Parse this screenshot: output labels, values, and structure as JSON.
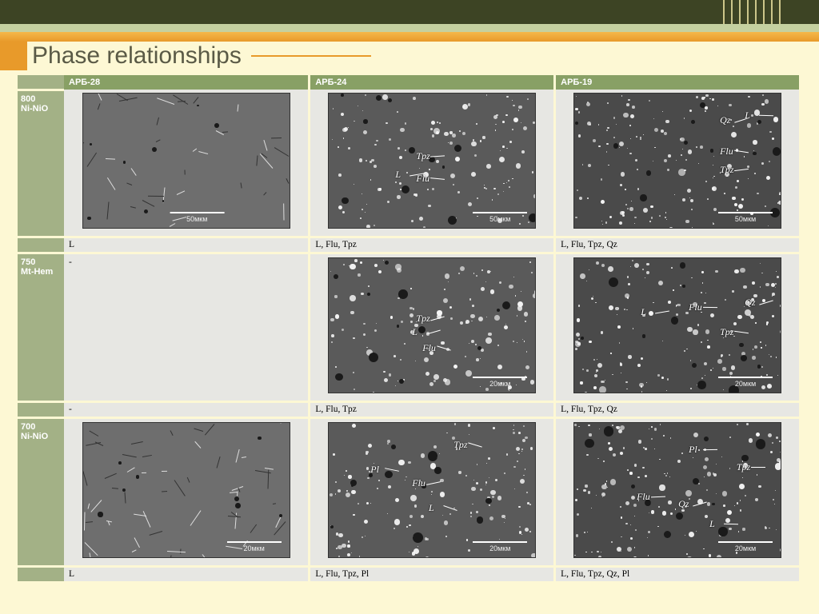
{
  "title": "Phase relationships",
  "columns": [
    "АРБ-28",
    "АРБ-24",
    "АРБ-19"
  ],
  "rows": [
    {
      "label": "800 Ni-NiO",
      "cells": [
        {
          "style": "sparse",
          "scale": "50мкм",
          "labels": []
        },
        {
          "style": "dense-mid",
          "scale": "50мкм",
          "labels": [
            {
              "t": "L",
              "x": 32,
              "y": 55
            },
            {
              "t": "Tpz",
              "x": 42,
              "y": 42
            },
            {
              "t": "Flu",
              "x": 42,
              "y": 58
            }
          ]
        },
        {
          "style": "dense-dark",
          "scale": "50мкм",
          "labels": [
            {
              "t": "Qz",
              "x": 70,
              "y": 15
            },
            {
              "t": "L",
              "x": 82,
              "y": 12
            },
            {
              "t": "Flu",
              "x": 70,
              "y": 38
            },
            {
              "t": "Tpz",
              "x": 70,
              "y": 52
            }
          ]
        }
      ],
      "captions": [
        "L",
        "L, Flu, Tpz",
        "L, Flu, Tpz, Qz"
      ]
    },
    {
      "label": "750 Mt-Hem",
      "cells": [
        {
          "style": "empty",
          "text": "-"
        },
        {
          "style": "dense-mid",
          "scale": "20мкм",
          "labels": [
            {
              "t": "Tpz",
              "x": 42,
              "y": 40
            },
            {
              "t": "L",
              "x": 40,
              "y": 50
            },
            {
              "t": "Flu",
              "x": 45,
              "y": 62
            }
          ]
        },
        {
          "style": "dense-dark",
          "scale": "20мкм",
          "labels": [
            {
              "t": "L",
              "x": 32,
              "y": 35
            },
            {
              "t": "Flu",
              "x": 55,
              "y": 32
            },
            {
              "t": "Qz",
              "x": 82,
              "y": 28
            },
            {
              "t": "Tpz",
              "x": 70,
              "y": 50
            }
          ]
        }
      ],
      "captions": [
        "-",
        "L, Flu, Tpz",
        "L, Flu, Tpz, Qz"
      ]
    },
    {
      "label": "700 Ni-NiO",
      "cells": [
        {
          "style": "needles",
          "scale": "20мкм",
          "labels": []
        },
        {
          "style": "dense-mid",
          "scale": "20мкм",
          "labels": [
            {
              "t": "Tpz",
              "x": 60,
              "y": 12
            },
            {
              "t": "Pl",
              "x": 20,
              "y": 30
            },
            {
              "t": "Flu",
              "x": 40,
              "y": 40
            },
            {
              "t": "L",
              "x": 48,
              "y": 58
            }
          ]
        },
        {
          "style": "dense-dark",
          "scale": "20мкм",
          "labels": [
            {
              "t": "Pl",
              "x": 55,
              "y": 15
            },
            {
              "t": "Tpz",
              "x": 78,
              "y": 28
            },
            {
              "t": "Flu",
              "x": 30,
              "y": 50
            },
            {
              "t": "Qz",
              "x": 50,
              "y": 55
            },
            {
              "t": "L",
              "x": 65,
              "y": 70
            }
          ]
        }
      ],
      "captions": [
        "L",
        "L, Flu, Tpz, Pl",
        "L, Flu, Tpz, Qz, Pl"
      ]
    }
  ],
  "colors": {
    "page_bg": "#fdf8d4",
    "header_green": "#88a065",
    "row_green": "#a3b186",
    "cell_bg": "#e7e7e3",
    "topbar": "#3d4424",
    "orange": "#e89a2a"
  }
}
